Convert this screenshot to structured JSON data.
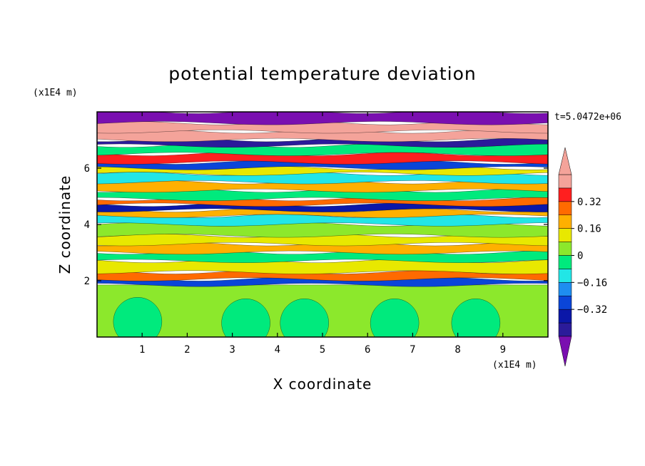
{
  "chart_data": {
    "type": "heatmap",
    "title": "potential temperature deviation",
    "xlabel": "X coordinate",
    "ylabel": "Z coordinate",
    "x_unit": "(x1E4 m)",
    "y_unit": "(x1E4 m)",
    "xlim": [
      0,
      10
    ],
    "ylim": [
      0,
      8
    ],
    "x_ticks": [
      "1",
      "2",
      "3",
      "4",
      "5",
      "6",
      "7",
      "8",
      "9"
    ],
    "y_ticks": [
      "2",
      "4",
      "6"
    ],
    "annotation": "t=5.0472e+06",
    "colorbar": {
      "levels": [
        -0.48,
        -0.4,
        -0.32,
        -0.24,
        -0.16,
        -0.08,
        0,
        0.08,
        0.16,
        0.24,
        0.32,
        0.4,
        0.48
      ],
      "tick_labels": [
        "0.32",
        "0.16",
        "0",
        "−0.16",
        "−0.32"
      ],
      "tick_values": [
        0.32,
        0.16,
        0,
        -0.16,
        -0.32
      ],
      "colors": [
        "#7a0fb0",
        "#2b1b9a",
        "#0b17a8",
        "#0a45d8",
        "#1e8ef0",
        "#22e6e6",
        "#00ea7d",
        "#8ce82c",
        "#e8e800",
        "#ffb000",
        "#ff6a00",
        "#ff1f1f",
        "#f4a39a"
      ],
      "extend": "both"
    },
    "bands": [
      {
        "z": [
          0.0,
          1.85
        ],
        "value": 0.04
      },
      {
        "z": [
          1.85,
          2.05
        ],
        "value": -0.3
      },
      {
        "z": [
          2.05,
          2.3
        ],
        "value": 0.25
      },
      {
        "z": [
          2.3,
          2.7
        ],
        "value": 0.1
      },
      {
        "z": [
          2.7,
          3.0
        ],
        "value": -0.05
      },
      {
        "z": [
          3.0,
          3.3
        ],
        "value": 0.17
      },
      {
        "z": [
          3.3,
          3.6
        ],
        "value": 0.08
      },
      {
        "z": [
          3.6,
          4.0
        ],
        "value": 0.04
      },
      {
        "z": [
          4.0,
          4.3
        ],
        "value": -0.1
      },
      {
        "z": [
          4.3,
          4.5
        ],
        "value": 0.2
      },
      {
        "z": [
          4.5,
          4.7
        ],
        "value": -0.35
      },
      {
        "z": [
          4.7,
          4.9
        ],
        "value": 0.3
      },
      {
        "z": [
          4.9,
          5.2
        ],
        "value": -0.05
      },
      {
        "z": [
          5.2,
          5.5
        ],
        "value": 0.2
      },
      {
        "z": [
          5.5,
          5.8
        ],
        "value": -0.15
      },
      {
        "z": [
          5.8,
          6.0
        ],
        "value": 0.1
      },
      {
        "z": [
          6.0,
          6.2
        ],
        "value": -0.3
      },
      {
        "z": [
          6.2,
          6.5
        ],
        "value": 0.34
      },
      {
        "z": [
          6.5,
          6.8
        ],
        "value": -0.05
      },
      {
        "z": [
          6.8,
          7.0
        ],
        "value": -0.42
      },
      {
        "z": [
          7.0,
          7.3
        ],
        "value": 0.4
      },
      {
        "z": [
          7.3,
          7.6
        ],
        "value": 0.5
      },
      {
        "z": [
          7.6,
          8.0
        ],
        "value": -0.5
      }
    ]
  }
}
